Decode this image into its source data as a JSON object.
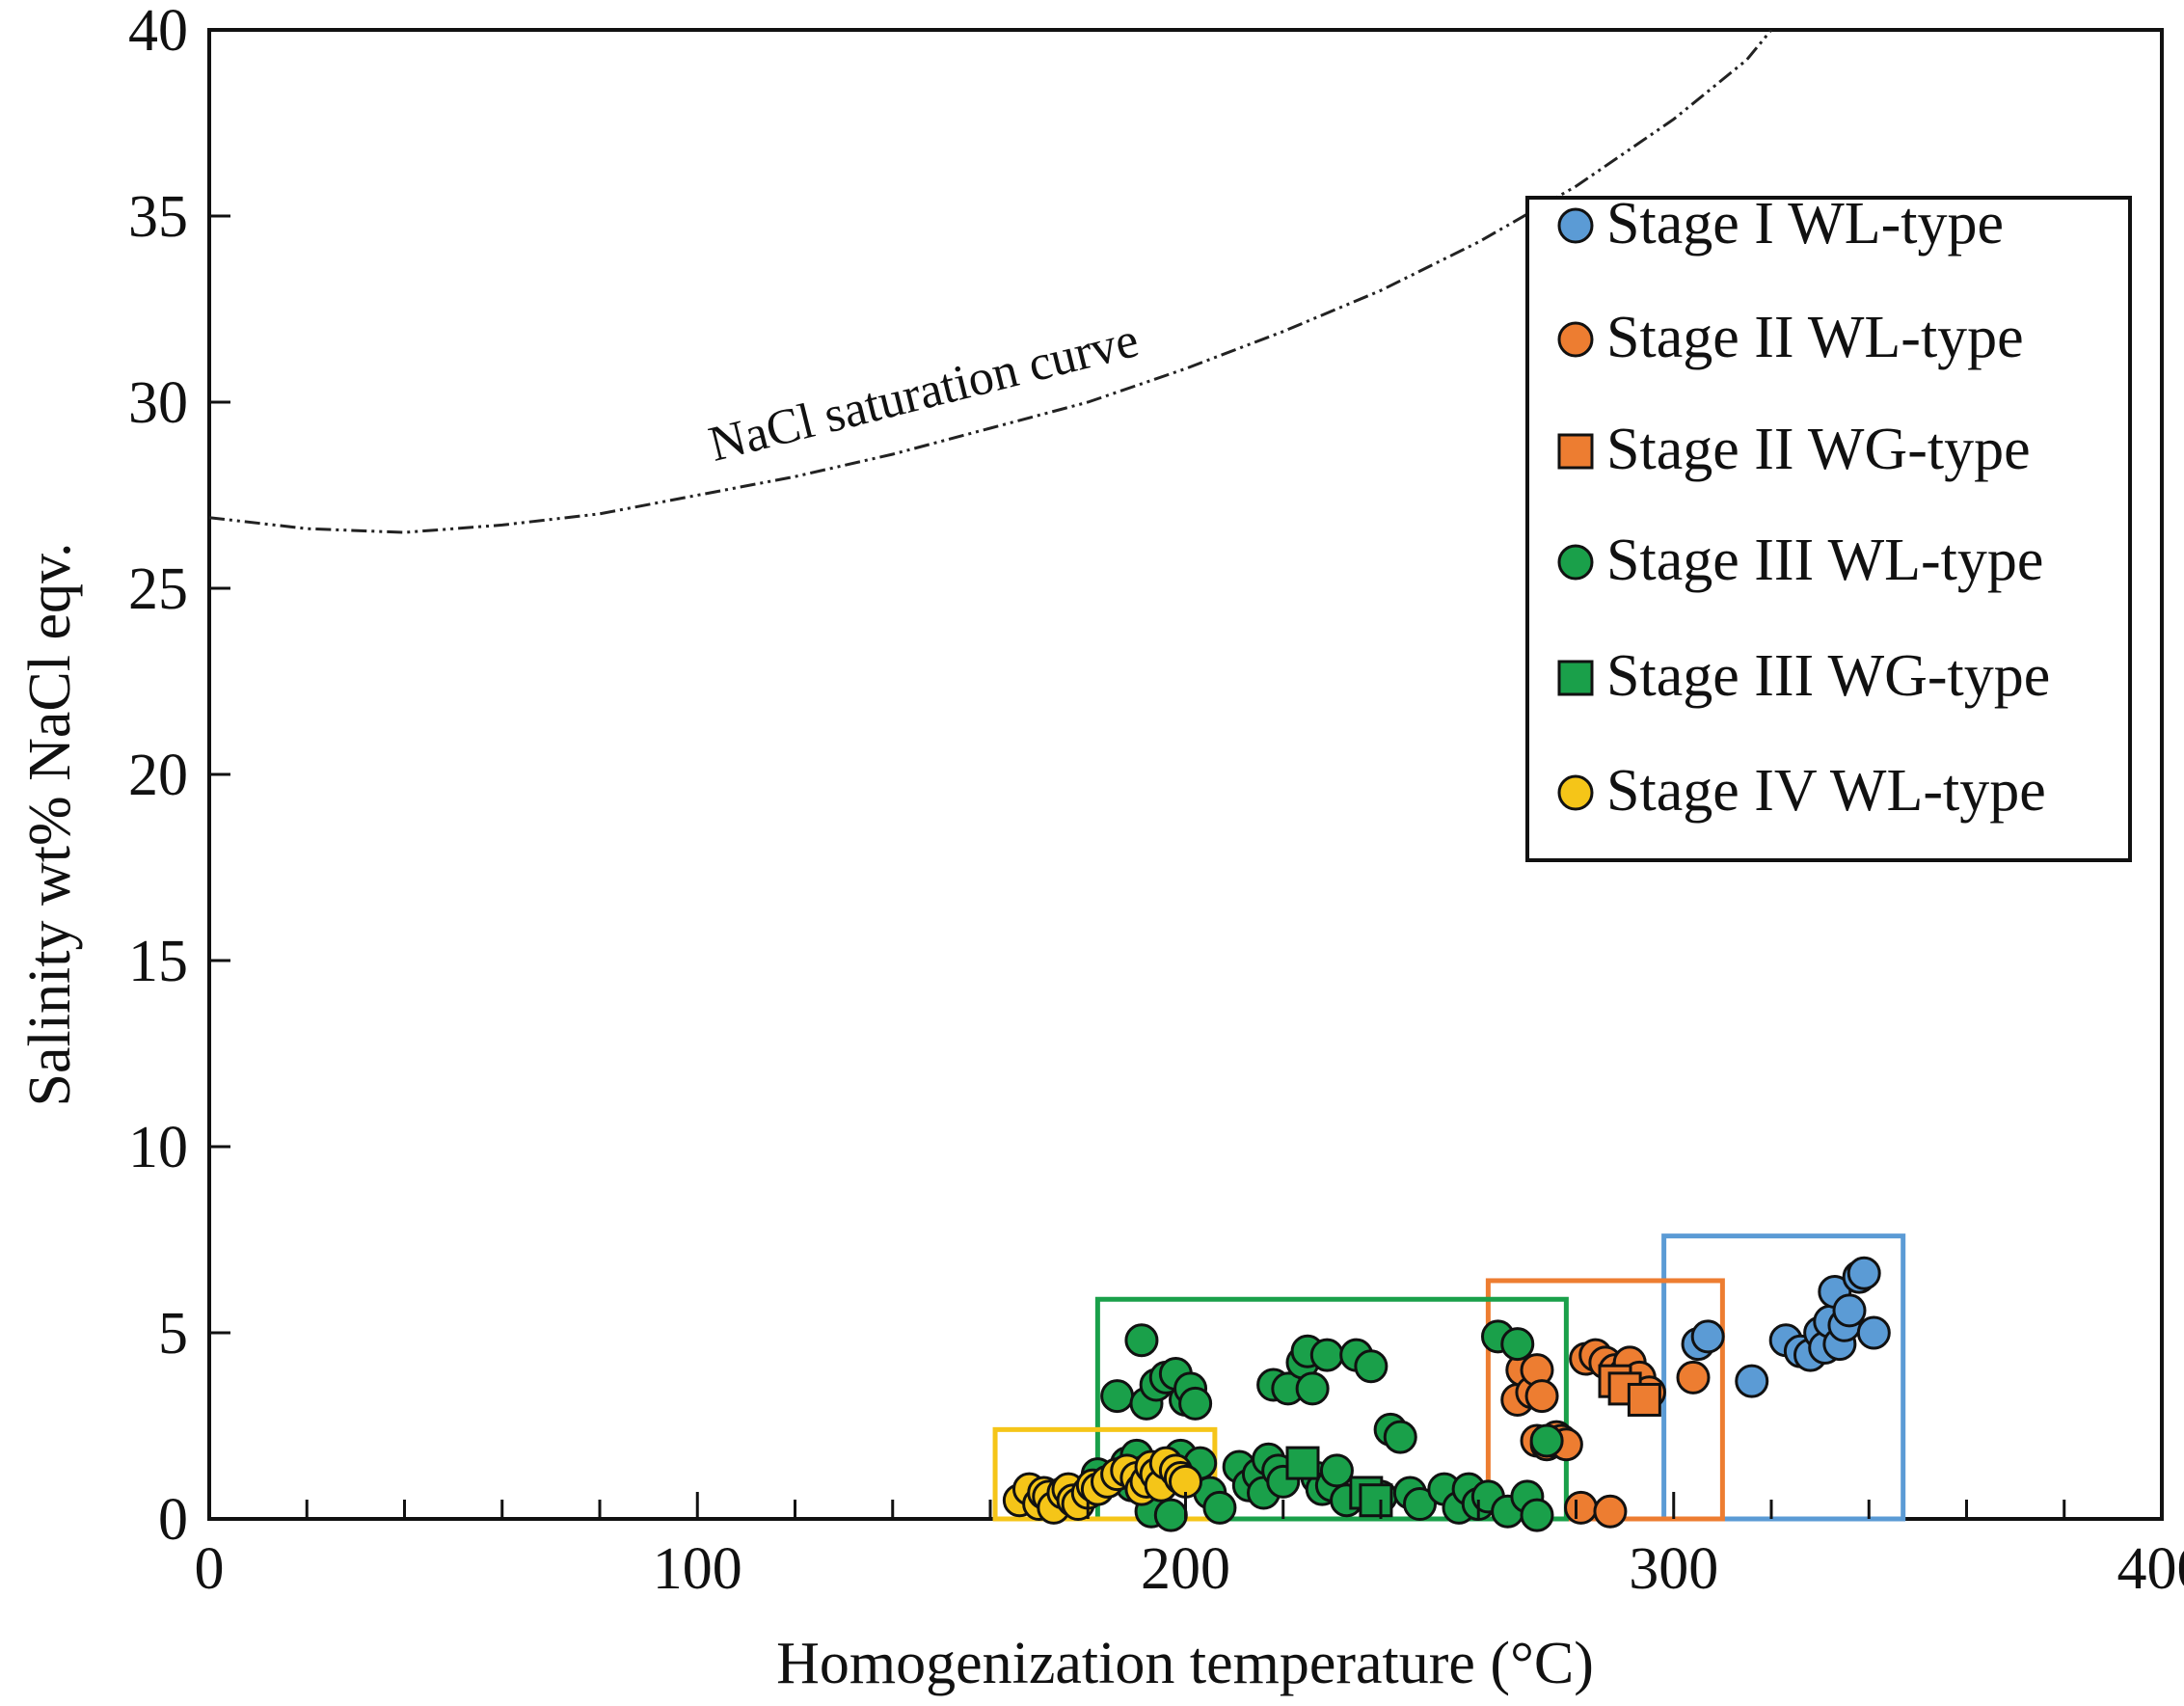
{
  "chart_data": {
    "type": "scatter",
    "title": "",
    "xlabel": "Homogenization temperature (°C)",
    "ylabel": "Salinity wt% NaCl eqv.",
    "xlim": [
      0,
      400
    ],
    "ylim": [
      0,
      40
    ],
    "xticks": [
      "0",
      "100",
      "200",
      "300",
      "400"
    ],
    "yticks": [
      "0",
      "5",
      "10",
      "15",
      "20",
      "25",
      "30",
      "35",
      "40"
    ],
    "grid": false,
    "legend_position": "top-right",
    "curve": {
      "label": "NaCl saturation curve",
      "points": [
        [
          0,
          26.9
        ],
        [
          20,
          26.6
        ],
        [
          40,
          26.5
        ],
        [
          60,
          26.7
        ],
        [
          80,
          27.0
        ],
        [
          100,
          27.5
        ],
        [
          120,
          28.0
        ],
        [
          140,
          28.6
        ],
        [
          160,
          29.3
        ],
        [
          180,
          30.0
        ],
        [
          200,
          30.9
        ],
        [
          220,
          31.9
        ],
        [
          240,
          33.0
        ],
        [
          260,
          34.3
        ],
        [
          280,
          35.8
        ],
        [
          300,
          37.6
        ],
        [
          315,
          39.2
        ],
        [
          320,
          40.0
        ]
      ]
    },
    "series": [
      {
        "name": "Stage I WL-type",
        "marker": "circle",
        "color": "#5b9bd5",
        "box": {
          "x": [
            298,
            347
          ],
          "y": [
            0,
            7.6
          ]
        },
        "x": [
          305,
          307,
          316,
          323,
          326,
          328,
          330,
          331,
          332,
          333,
          334,
          335,
          336,
          338,
          339,
          341
        ],
        "y": [
          4.7,
          4.9,
          3.7,
          4.8,
          4.5,
          4.4,
          5.0,
          4.6,
          5.3,
          6.1,
          4.7,
          5.2,
          5.6,
          6.5,
          6.6,
          5.0
        ]
      },
      {
        "name": "Stage II WL-type",
        "marker": "circle",
        "color": "#ed7d31",
        "box": {
          "x": [
            262,
            310
          ],
          "y": [
            0,
            6.4
          ]
        },
        "x": [
          268,
          269,
          271,
          272,
          272,
          273,
          274,
          275,
          276,
          277,
          278,
          281,
          282,
          284,
          286,
          287,
          288,
          290,
          291,
          292,
          293,
          295,
          304
        ],
        "y": [
          3.2,
          4.0,
          3.4,
          2.1,
          4.0,
          3.3,
          2.0,
          2.1,
          2.2,
          2.1,
          2.0,
          0.3,
          4.3,
          4.4,
          4.2,
          0.2,
          4.0,
          3.9,
          4.2,
          3.6,
          3.8,
          3.4,
          3.8
        ]
      },
      {
        "name": "Stage II WG-type",
        "marker": "square",
        "color": "#ed7d31",
        "box": null,
        "x": [
          288,
          290,
          294
        ],
        "y": [
          3.7,
          3.5,
          3.2
        ]
      },
      {
        "name": "Stage III WL-type",
        "marker": "circle",
        "color": "#1aa04a",
        "box": {
          "x": [
            182,
            278
          ],
          "y": [
            0,
            5.9
          ]
        },
        "x": [
          182,
          184,
          186,
          188,
          189,
          190,
          191,
          192,
          192,
          193,
          194,
          195,
          196,
          197,
          198,
          199,
          200,
          201,
          202,
          203,
          205,
          207,
          211,
          213,
          215,
          216,
          217,
          218,
          219,
          220,
          221,
          224,
          225,
          226,
          227,
          228,
          229,
          230,
          231,
          233,
          235,
          238,
          240,
          242,
          244,
          246,
          248,
          253,
          256,
          258,
          260,
          262,
          264,
          266,
          268,
          270,
          272,
          274
        ],
        "y": [
          1.2,
          1.0,
          3.3,
          1.5,
          0.9,
          1.7,
          4.8,
          3.1,
          1.3,
          0.2,
          3.6,
          1.4,
          3.8,
          0.1,
          3.9,
          1.7,
          3.2,
          3.5,
          3.1,
          1.5,
          0.7,
          0.3,
          1.4,
          0.9,
          1.2,
          0.7,
          1.6,
          3.6,
          1.3,
          1.0,
          3.5,
          4.2,
          4.5,
          3.5,
          1.1,
          0.8,
          4.4,
          0.9,
          1.3,
          0.5,
          4.4,
          4.1,
          0.6,
          2.4,
          2.2,
          0.7,
          0.4,
          0.8,
          0.3,
          0.8,
          0.4,
          0.6,
          4.9,
          0.2,
          4.7,
          0.6,
          0.1,
          2.1
        ]
      },
      {
        "name": "Stage III WG-type",
        "marker": "square",
        "color": "#1aa04a",
        "box": null,
        "x": [
          224,
          237,
          239
        ],
        "y": [
          1.5,
          0.7,
          0.5
        ]
      },
      {
        "name": "Stage IV WL-type",
        "marker": "circle",
        "color": "#f5c518",
        "box": {
          "x": [
            161,
            206
          ],
          "y": [
            0,
            2.4
          ]
        },
        "x": [
          166,
          168,
          170,
          171,
          172,
          173,
          175,
          176,
          177,
          178,
          180,
          181,
          182,
          184,
          186,
          188,
          190,
          191,
          192,
          193,
          194,
          195,
          196,
          198,
          199,
          200
        ],
        "y": [
          0.5,
          0.8,
          0.4,
          0.7,
          0.6,
          0.3,
          0.7,
          0.8,
          0.5,
          0.4,
          0.7,
          0.9,
          0.8,
          1.0,
          1.2,
          1.3,
          1.1,
          0.8,
          1.0,
          1.4,
          1.2,
          0.9,
          1.5,
          1.3,
          1.1,
          1.0
        ]
      }
    ]
  }
}
